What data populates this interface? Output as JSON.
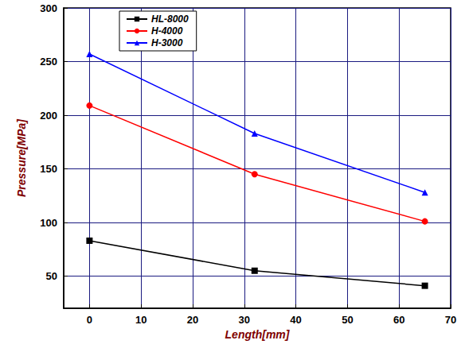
{
  "chart_data": {
    "type": "line",
    "x_label": "Length[mm]",
    "y_label": "Pressure[MPa]",
    "series": [
      {
        "name": "HL-8000",
        "color": "#000000",
        "marker": "square",
        "x": [
          0,
          32,
          65
        ],
        "values": [
          83,
          55,
          41
        ]
      },
      {
        "name": "H-4000",
        "color": "#ff0000",
        "marker": "circle",
        "x": [
          0,
          32,
          65
        ],
        "values": [
          209,
          145,
          101
        ]
      },
      {
        "name": "H-3000",
        "color": "#0000ff",
        "marker": "triangle",
        "x": [
          0,
          32,
          65
        ],
        "values": [
          257,
          183,
          128
        ]
      }
    ],
    "xlim": [
      -5,
      70
    ],
    "xticks": [
      0,
      10,
      20,
      30,
      40,
      50,
      60,
      70
    ],
    "ylim": [
      20,
      300
    ],
    "yticks": [
      50,
      100,
      150,
      200,
      250,
      300
    ],
    "grid": true,
    "legend": "upper left"
  }
}
